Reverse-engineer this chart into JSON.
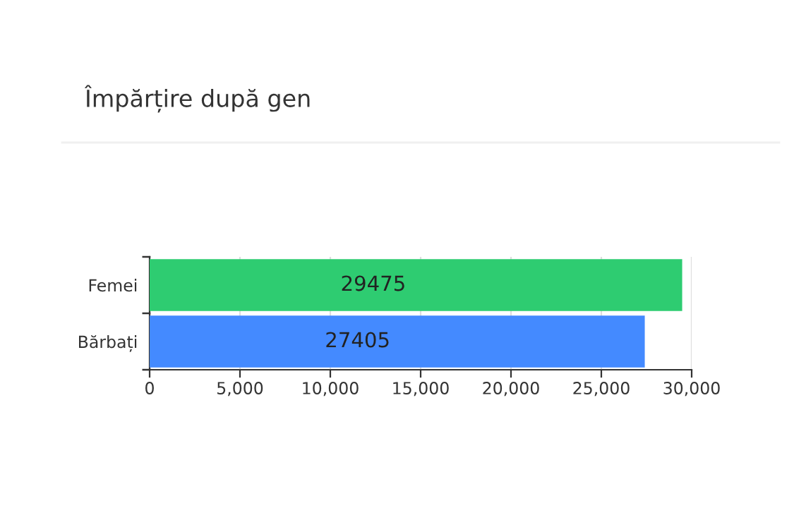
{
  "chart_data": {
    "type": "bar",
    "orientation": "horizontal",
    "title": "Împărțire după gen",
    "categories": [
      "Femei",
      "Bărbați"
    ],
    "series": [
      {
        "values": [
          29475,
          27405
        ],
        "colors": [
          "#2ecc71",
          "#448aff"
        ]
      }
    ],
    "xlim": [
      0,
      30000
    ],
    "xticks": [
      {
        "value": 0,
        "label": "0"
      },
      {
        "value": 5000,
        "label": "5,000"
      },
      {
        "value": 10000,
        "label": "10,000"
      },
      {
        "value": 15000,
        "label": "15,000"
      },
      {
        "value": 20000,
        "label": "20,000"
      },
      {
        "value": 25000,
        "label": "25,000"
      },
      {
        "value": 30000,
        "label": "30,000"
      }
    ],
    "grid": "x",
    "data_labels": true,
    "legend": false
  }
}
